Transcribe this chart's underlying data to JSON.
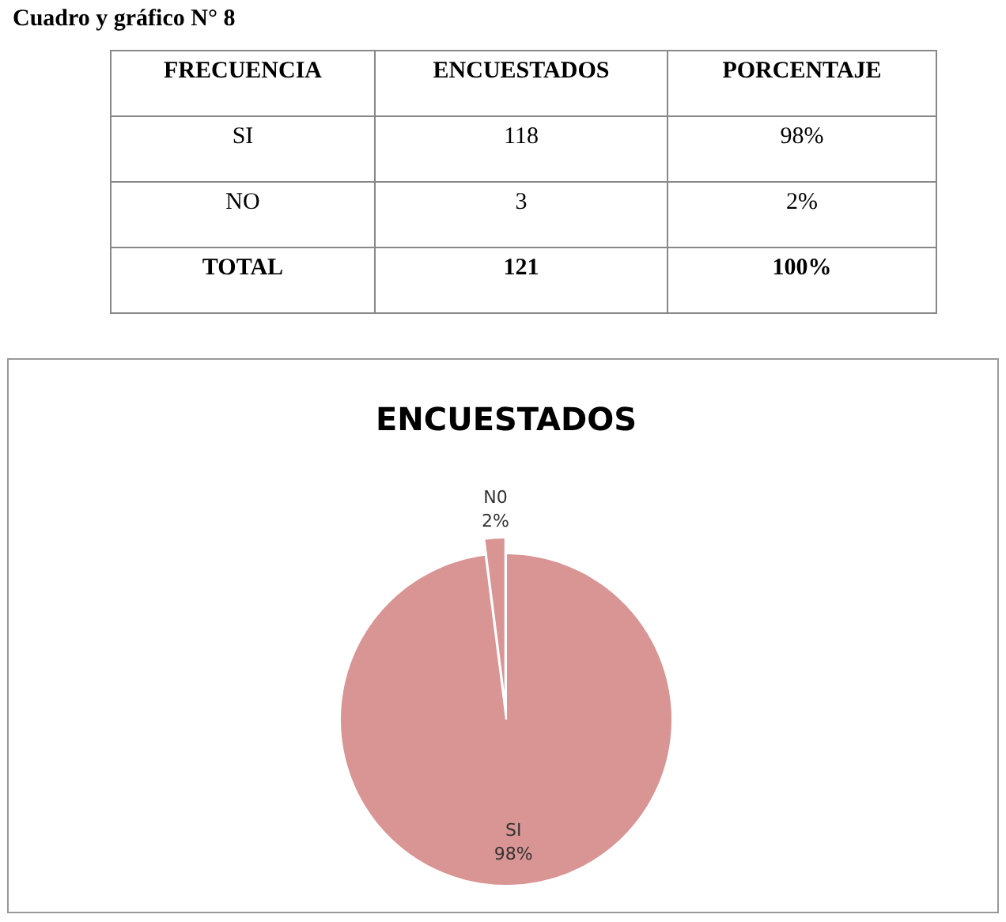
{
  "chart_data": [
    {
      "type": "other",
      "title": "Cuadro y gráfico N° 8",
      "annotations": [
        "FRECUENCIA",
        "ENCUESTADOS",
        "PORCENTAJE",
        "SI",
        "118",
        "98%",
        "NO",
        "3",
        "2%",
        "TOTAL",
        "121",
        "100%"
      ]
    },
    {
      "type": "pie",
      "title": "ENCUESTADOS",
      "categories": [
        "SI",
        "N0"
      ],
      "values": [
        98,
        2
      ],
      "colors": [
        "#d99594",
        "#d99594"
      ],
      "value_labels": [
        "98%",
        "2%"
      ]
    }
  ]
}
